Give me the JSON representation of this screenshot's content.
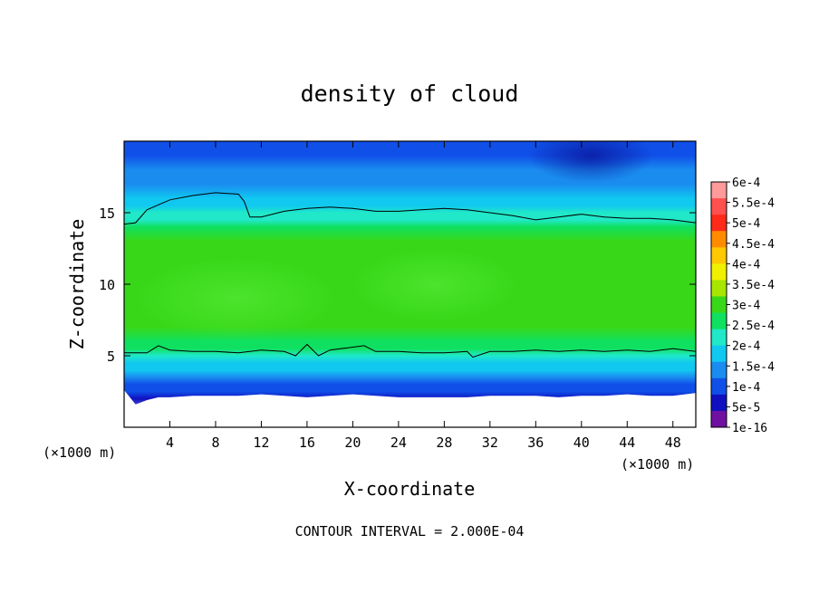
{
  "chart_data": {
    "type": "heatmap",
    "title": "density of cloud",
    "xlabel": "X-coordinate",
    "ylabel": "Z-coordinate",
    "x_unit_left": "(×1000 m)",
    "x_unit_right": "(×1000 m)",
    "footer": "CONTOUR INTERVAL = 2.000E-04",
    "xlim": [
      0,
      50
    ],
    "ylim": [
      0,
      20
    ],
    "x_ticks": [
      4,
      8,
      12,
      16,
      20,
      24,
      28,
      32,
      36,
      40,
      44,
      48
    ],
    "x_tick_labels": [
      "4",
      "8",
      "12",
      "16",
      "20",
      "24",
      "28",
      "32",
      "36",
      "40",
      "44",
      "48"
    ],
    "y_ticks": [
      5,
      10,
      15
    ],
    "y_tick_labels": [
      "5",
      "10",
      "15"
    ],
    "colorbar": {
      "labels": [
        "6e-4",
        "5.5e-4",
        "5e-4",
        "4.5e-4",
        "4e-4",
        "3.5e-4",
        "3e-4",
        "2.5e-4",
        "2e-4",
        "1.5e-4",
        "1e-4",
        "5e-5",
        "1e-16"
      ],
      "colors": [
        "#ff9a9a",
        "#ff5050",
        "#ff2a1a",
        "#ff8c00",
        "#ffc800",
        "#f0f000",
        "#a6e600",
        "#38d818",
        "#10e060",
        "#20e8c8",
        "#10c8f0",
        "#1a8cf0",
        "#1050e8",
        "#1010c0",
        "#7010a0"
      ]
    },
    "contour_levels": [
      0.0002
    ],
    "contours": [
      {
        "level": 0.0002,
        "x": [
          0,
          1,
          2,
          4,
          6,
          8,
          10,
          10.5,
          11,
          12,
          14,
          16,
          18,
          20,
          22,
          24,
          26,
          28,
          30,
          32,
          34,
          36,
          38,
          40,
          42,
          44,
          46,
          48,
          50
        ],
        "z": [
          14.2,
          14.3,
          15.2,
          15.9,
          16.2,
          16.4,
          16.3,
          15.8,
          14.7,
          14.7,
          15.1,
          15.3,
          15.4,
          15.3,
          15.1,
          15.1,
          15.2,
          15.3,
          15.2,
          15.0,
          14.8,
          14.5,
          14.7,
          14.9,
          14.7,
          14.6,
          14.6,
          14.5,
          14.3
        ]
      },
      {
        "level": 0.0002,
        "x": [
          0,
          2,
          3,
          4,
          6,
          8,
          10,
          12,
          14,
          15,
          16,
          17,
          18,
          20,
          21,
          22,
          24,
          26,
          28,
          30,
          30.5,
          32,
          34,
          36,
          38,
          40,
          42,
          44,
          46,
          48,
          50
        ],
        "z": [
          5.2,
          5.2,
          5.7,
          5.4,
          5.3,
          5.3,
          5.2,
          5.4,
          5.3,
          5.0,
          5.8,
          5.0,
          5.4,
          5.6,
          5.7,
          5.3,
          5.3,
          5.2,
          5.2,
          5.3,
          4.9,
          5.3,
          5.3,
          5.4,
          5.3,
          5.4,
          5.3,
          5.4,
          5.3,
          5.5,
          5.3
        ]
      }
    ],
    "cloud_base": {
      "x": [
        0,
        1,
        2,
        3,
        4,
        6,
        8,
        10,
        12,
        14,
        16,
        18,
        20,
        22,
        24,
        26,
        28,
        30,
        32,
        34,
        36,
        38,
        40,
        42,
        44,
        46,
        48,
        50
      ],
      "z": [
        2.6,
        1.6,
        1.9,
        2.1,
        2.1,
        2.2,
        2.2,
        2.2,
        2.3,
        2.2,
        2.1,
        2.2,
        2.3,
        2.2,
        2.1,
        2.1,
        2.1,
        2.1,
        2.2,
        2.2,
        2.2,
        2.1,
        2.2,
        2.2,
        2.3,
        2.2,
        2.2,
        2.4
      ]
    },
    "vertical_profile": {
      "z": [
        0,
        2.0,
        2.5,
        3.0,
        3.5,
        4.0,
        4.5,
        5.0,
        5.5,
        6.0,
        7.0,
        8.0,
        9.0,
        10.0,
        11.0,
        12.0,
        13.0,
        14.0,
        14.5,
        15.0,
        15.5,
        16.0,
        17.0,
        18.0,
        19.0,
        20.0
      ],
      "value": [
        0.0,
        1e-05,
        5e-05,
        7e-05,
        0.0001,
        0.00013,
        0.00016,
        0.0002,
        0.00023,
        0.00025,
        0.00026,
        0.00027,
        0.000275,
        0.00028,
        0.000275,
        0.00027,
        0.00026,
        0.00024,
        0.00021,
        0.00019,
        0.00017,
        0.00015,
        0.00012,
        0.0001,
        7e-05,
        5e-05
      ]
    },
    "grid": false
  }
}
